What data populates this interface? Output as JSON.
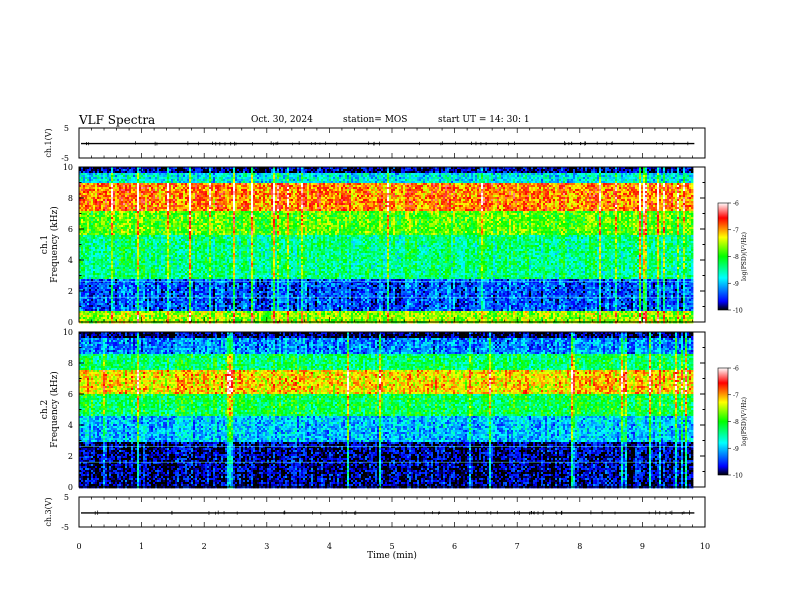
{
  "header": {
    "title": "VLF Spectra",
    "date": "Oct. 30, 2024",
    "station": "station= MOS",
    "start": "start  UT =   14: 30: 1"
  },
  "chart_data": [
    {
      "type": "line",
      "panel": "ch1-voltage",
      "ylabel": "ch.1(V)",
      "ylim": [
        -5,
        5
      ],
      "yticks": [
        "5",
        "-5"
      ],
      "series": [
        {
          "values_description_free": true,
          "constant": -0.2
        }
      ]
    },
    {
      "type": "heatmap",
      "panel": "ch1-spectrogram",
      "ylabel": "ch.1\nFrequency (kHz)",
      "ylabel_top": "ch.1",
      "ylabel_bottom": "Frequency (kHz)",
      "ylim": [
        0,
        10
      ],
      "yticks": [
        "0",
        "2",
        "4",
        "6",
        "8",
        "10"
      ],
      "xlim": [
        0,
        10
      ],
      "colorbar": {
        "label": "log(PSD)(V²/Hz)",
        "ticks": [
          "-6",
          "-7",
          "-8",
          "-9",
          "-10"
        ],
        "range": [
          -10,
          -6
        ]
      },
      "bands_kHz": [
        {
          "from": 0,
          "to": 0.8,
          "level": -7.6
        },
        {
          "from": 0.8,
          "to": 2.8,
          "level": -9.4
        },
        {
          "from": 2.8,
          "to": 5.6,
          "level": -8.4
        },
        {
          "from": 5.6,
          "to": 7.2,
          "level": -7.8
        },
        {
          "from": 7.2,
          "to": 9.0,
          "level": -6.9
        },
        {
          "from": 9.0,
          "to": 9.6,
          "level": -8.8
        },
        {
          "from": 9.6,
          "to": 10,
          "level": -9.8
        }
      ]
    },
    {
      "type": "heatmap",
      "panel": "ch2-spectrogram",
      "ylabel_top": "ch.2",
      "ylabel_bottom": "Frequency (kHz)",
      "ylim": [
        0,
        10
      ],
      "yticks": [
        "0",
        "2",
        "4",
        "6",
        "8",
        "10"
      ],
      "xlim": [
        0,
        10
      ],
      "colorbar": {
        "label": "log(PSD)(V²/Hz)",
        "ticks": [
          "-6",
          "-7",
          "-8",
          "-9",
          "-10"
        ],
        "range": [
          -10,
          -6
        ]
      },
      "bands_kHz": [
        {
          "from": 0,
          "to": 3.0,
          "level": -9.8
        },
        {
          "from": 3.0,
          "to": 4.6,
          "level": -9.0
        },
        {
          "from": 4.6,
          "to": 6.0,
          "level": -8.2
        },
        {
          "from": 6.0,
          "to": 7.6,
          "level": -7.2
        },
        {
          "from": 7.6,
          "to": 8.6,
          "level": -8.3
        },
        {
          "from": 8.6,
          "to": 9.6,
          "level": -9.2
        },
        {
          "from": 9.6,
          "to": 10,
          "level": -9.9
        }
      ]
    },
    {
      "type": "line",
      "panel": "ch3-voltage",
      "ylabel": "ch.3(V)",
      "ylim": [
        -5,
        5
      ],
      "yticks": [
        "5",
        "-5"
      ],
      "series": [
        {
          "constant": -0.3
        }
      ]
    }
  ],
  "xaxis": {
    "label": "Time  (min)",
    "ticks": [
      "0",
      "1",
      "2",
      "3",
      "4",
      "5",
      "6",
      "7",
      "8",
      "9",
      "10"
    ],
    "xlim": [
      0,
      10
    ],
    "data_end": 9.83
  },
  "colors": {
    "scale": [
      "#000000",
      "#0000ff",
      "#00ffff",
      "#00ff00",
      "#ffff00",
      "#ff0000",
      "#ffffff"
    ]
  }
}
